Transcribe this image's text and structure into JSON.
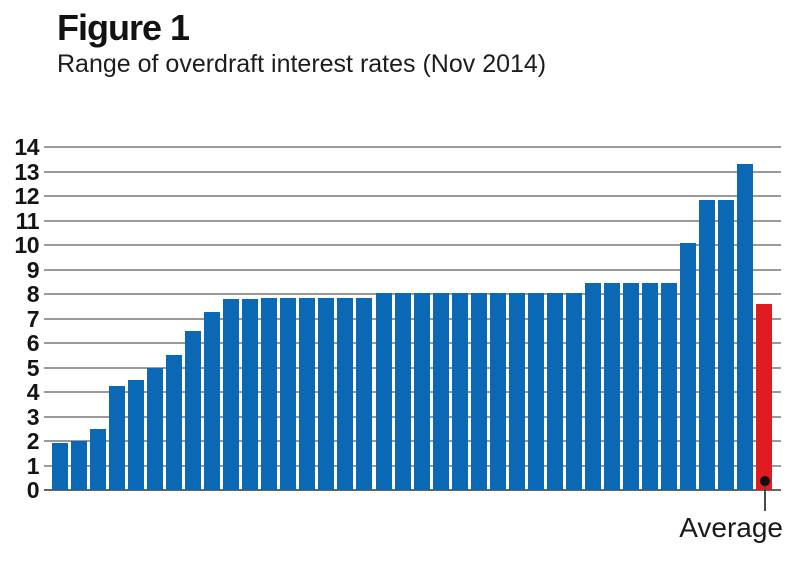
{
  "figure": {
    "label": "Figure 1",
    "subtitle": "Range of overdraft interest rates (Nov 2014)"
  },
  "chart_data": {
    "type": "bar",
    "title": "Range of overdraft interest rates (Nov 2014)",
    "xlabel": "",
    "ylabel": "",
    "unit": "%",
    "ylim": [
      0,
      14
    ],
    "yticks": [
      0,
      1,
      2,
      3,
      4,
      5,
      6,
      7,
      8,
      9,
      10,
      11,
      12,
      13,
      14
    ],
    "grid": "horizontal",
    "legend": "none",
    "provider_values": [
      1.9,
      2.0,
      2.5,
      4.25,
      4.5,
      5.0,
      5.5,
      6.5,
      7.25,
      7.8,
      7.8,
      7.85,
      7.85,
      7.85,
      7.85,
      7.85,
      7.85,
      8.05,
      8.05,
      8.05,
      8.05,
      8.05,
      8.05,
      8.05,
      8.05,
      8.05,
      8.05,
      8.05,
      8.45,
      8.45,
      8.45,
      8.45,
      8.45,
      10.1,
      11.85,
      11.85,
      13.3
    ],
    "average_value": 7.6,
    "average_label": "Average",
    "bar_color": "#0b68b4",
    "average_color": "#e11b22",
    "marker": "dot",
    "marker_color": "#101010",
    "gridline_color": "#9a9a9a"
  }
}
